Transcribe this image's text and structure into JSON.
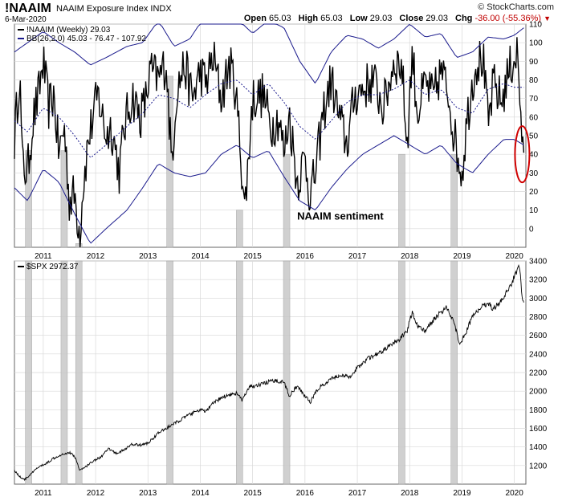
{
  "header": {
    "symbol": "!NAAIM",
    "index_name": "NAAIM Exposure Index",
    "exchange": "INDX",
    "date": "6-Mar-2020",
    "brand": "© StockCharts.com",
    "open_label": "Open",
    "open": "65.03",
    "high_label": "High",
    "high": "65.03",
    "low_label": "Low",
    "low": "29.03",
    "close_label": "Close",
    "close": "29.03",
    "chg_label": "Chg",
    "chg": "-36.00 (-55.36%)"
  },
  "colors": {
    "price": "#000000",
    "bands": "#1a1a8c",
    "highlight": "#c8c8c8",
    "circle": "#d00000",
    "grid": "#d8d8d8"
  },
  "chart_data": [
    {
      "type": "line",
      "title": "NAAIM Exposure Index",
      "annotation": "NAAIM sentiment",
      "legend": [
        {
          "name": "!NAAIM (Weekly) 29.03"
        },
        {
          "name": "BB(26,2.0) 45.03 - 76.47 - 107.92"
        }
      ],
      "ylim": [
        -10,
        110
      ],
      "yticks": [
        0,
        10,
        20,
        30,
        40,
        50,
        60,
        70,
        80,
        90,
        100,
        110
      ],
      "xlim": [
        2010.45,
        2020.22
      ],
      "xticks": [
        "2011",
        "2012",
        "2013",
        "2014",
        "2015",
        "2016",
        "2017",
        "2018",
        "2019",
        "2020"
      ],
      "series": [
        {
          "name": "NAAIM",
          "x": [
            2010.45,
            2010.55,
            2010.6,
            2010.7,
            2010.8,
            2010.9,
            2011.0,
            2011.1,
            2011.2,
            2011.3,
            2011.4,
            2011.45,
            2011.5,
            2011.6,
            2011.7,
            2011.75,
            2011.85,
            2011.95,
            2012.05,
            2012.2,
            2012.3,
            2012.4,
            2012.45,
            2012.55,
            2012.7,
            2012.85,
            2012.95,
            2013.05,
            2013.2,
            2013.35,
            2013.45,
            2013.55,
            2013.7,
            2013.85,
            2014.0,
            2014.1,
            2014.25,
            2014.4,
            2014.55,
            2014.65,
            2014.75,
            2014.85,
            2015.0,
            2015.2,
            2015.35,
            2015.5,
            2015.6,
            2015.7,
            2015.85,
            2016.0,
            2016.1,
            2016.2,
            2016.35,
            2016.5,
            2016.65,
            2016.8,
            2016.95,
            2017.1,
            2017.3,
            2017.5,
            2017.7,
            2017.85,
            2017.95,
            2018.05,
            2018.15,
            2018.3,
            2018.45,
            2018.6,
            2018.75,
            2018.85,
            2018.93,
            2019.0,
            2019.1,
            2019.25,
            2019.4,
            2019.5,
            2019.6,
            2019.75,
            2019.9,
            2020.0,
            2020.05,
            2020.12,
            2020.18
          ],
          "y": [
            48,
            85,
            35,
            30,
            58,
            70,
            90,
            65,
            72,
            40,
            55,
            35,
            15,
            18,
            -3,
            20,
            45,
            60,
            72,
            50,
            55,
            40,
            30,
            55,
            72,
            60,
            68,
            85,
            80,
            90,
            35,
            75,
            88,
            70,
            85,
            78,
            92,
            70,
            88,
            80,
            50,
            10,
            70,
            72,
            55,
            60,
            40,
            62,
            25,
            38,
            18,
            30,
            62,
            80,
            60,
            45,
            72,
            75,
            80,
            65,
            90,
            88,
            45,
            95,
            62,
            78,
            70,
            85,
            72,
            50,
            38,
            30,
            60,
            88,
            92,
            55,
            78,
            68,
            85,
            92,
            95,
            65,
            29
          ]
        },
        {
          "name": "BB upper",
          "x": [
            2010.45,
            2010.7,
            2011.0,
            2011.3,
            2011.6,
            2011.9,
            2012.2,
            2012.6,
            2012.9,
            2013.2,
            2013.5,
            2013.8,
            2014.1,
            2014.4,
            2014.7,
            2015.0,
            2015.3,
            2015.6,
            2015.9,
            2016.2,
            2016.5,
            2016.8,
            2017.1,
            2017.4,
            2017.7,
            2018.0,
            2018.3,
            2018.6,
            2018.9,
            2019.2,
            2019.5,
            2019.8,
            2020.0,
            2020.18
          ],
          "y": [
            95,
            100,
            106,
            100,
            95,
            88,
            92,
            98,
            100,
            112,
            98,
            102,
            115,
            112,
            113,
            105,
            112,
            108,
            90,
            78,
            95,
            104,
            102,
            97,
            102,
            110,
            103,
            105,
            92,
            95,
            103,
            102,
            104,
            108
          ]
        },
        {
          "name": "BB middle",
          "x": [
            2010.45,
            2010.7,
            2011.0,
            2011.3,
            2011.6,
            2011.9,
            2012.2,
            2012.6,
            2012.9,
            2013.2,
            2013.5,
            2013.8,
            2014.1,
            2014.4,
            2014.7,
            2015.0,
            2015.3,
            2015.6,
            2015.9,
            2016.2,
            2016.5,
            2016.8,
            2017.1,
            2017.4,
            2017.7,
            2018.0,
            2018.3,
            2018.6,
            2018.9,
            2019.2,
            2019.5,
            2019.8,
            2020.0,
            2020.18
          ],
          "y": [
            58,
            52,
            65,
            60,
            50,
            38,
            45,
            55,
            62,
            72,
            70,
            65,
            72,
            78,
            80,
            72,
            78,
            68,
            55,
            48,
            58,
            68,
            72,
            72,
            75,
            80,
            72,
            75,
            65,
            62,
            75,
            78,
            76,
            76
          ]
        },
        {
          "name": "BB lower",
          "x": [
            2010.45,
            2010.7,
            2011.0,
            2011.3,
            2011.6,
            2011.9,
            2012.2,
            2012.6,
            2012.9,
            2013.2,
            2013.5,
            2013.8,
            2014.1,
            2014.4,
            2014.7,
            2015.0,
            2015.3,
            2015.6,
            2015.9,
            2016.2,
            2016.5,
            2016.8,
            2017.1,
            2017.4,
            2017.7,
            2018.0,
            2018.3,
            2018.6,
            2018.9,
            2019.2,
            2019.5,
            2019.8,
            2020.0,
            2020.18
          ],
          "y": [
            22,
            15,
            32,
            25,
            8,
            -8,
            0,
            10,
            22,
            35,
            30,
            28,
            30,
            40,
            45,
            38,
            42,
            28,
            15,
            10,
            22,
            32,
            40,
            45,
            50,
            45,
            40,
            45,
            35,
            30,
            40,
            48,
            48,
            45
          ]
        }
      ],
      "highlights": [
        2010.72,
        2011.4,
        2011.68,
        2013.42,
        2014.75,
        2015.65,
        2017.85,
        2018.85
      ],
      "circle_at": {
        "x": 2020.15,
        "y": 40
      }
    },
    {
      "type": "line",
      "title": "$SPX",
      "legend": [
        {
          "name": "$SPX 2972.37"
        }
      ],
      "ylim": [
        1000,
        3400
      ],
      "yticks": [
        1200,
        1400,
        1600,
        1800,
        2000,
        2200,
        2400,
        2600,
        2800,
        3000,
        3200,
        3400
      ],
      "xlim": [
        2010.45,
        2020.22
      ],
      "xticks": [
        "2011",
        "2012",
        "2013",
        "2014",
        "2015",
        "2016",
        "2017",
        "2018",
        "2019",
        "2020"
      ],
      "series": [
        {
          "name": "SPX",
          "x": [
            2010.45,
            2010.55,
            2010.65,
            2010.75,
            2010.9,
            2011.05,
            2011.2,
            2011.35,
            2011.5,
            2011.6,
            2011.7,
            2011.8,
            2011.95,
            2012.1,
            2012.25,
            2012.4,
            2012.55,
            2012.7,
            2012.85,
            2013.0,
            2013.2,
            2013.35,
            2013.5,
            2013.65,
            2013.8,
            2014.0,
            2014.1,
            2014.25,
            2014.4,
            2014.55,
            2014.7,
            2014.8,
            2014.95,
            2015.1,
            2015.3,
            2015.45,
            2015.6,
            2015.7,
            2015.85,
            2016.0,
            2016.1,
            2016.25,
            2016.4,
            2016.55,
            2016.7,
            2016.85,
            2017.0,
            2017.2,
            2017.4,
            2017.6,
            2017.8,
            2017.95,
            2018.05,
            2018.15,
            2018.3,
            2018.5,
            2018.7,
            2018.85,
            2018.95,
            2019.05,
            2019.2,
            2019.35,
            2019.5,
            2019.6,
            2019.75,
            2019.9,
            2020.05,
            2020.1,
            2020.15,
            2020.18
          ],
          "y": [
            1150,
            1080,
            1050,
            1100,
            1180,
            1220,
            1280,
            1320,
            1340,
            1300,
            1150,
            1180,
            1250,
            1290,
            1380,
            1330,
            1370,
            1430,
            1420,
            1440,
            1550,
            1600,
            1650,
            1700,
            1750,
            1800,
            1780,
            1870,
            1930,
            1960,
            1980,
            1900,
            2050,
            2060,
            2100,
            2110,
            2100,
            1950,
            2050,
            1950,
            1880,
            2030,
            2080,
            2150,
            2170,
            2150,
            2250,
            2350,
            2400,
            2480,
            2550,
            2650,
            2850,
            2700,
            2650,
            2800,
            2900,
            2750,
            2500,
            2600,
            2800,
            2900,
            2950,
            2880,
            2980,
            3100,
            3300,
            3350,
            3000,
            2972
          ]
        }
      ],
      "highlights": [
        2010.72,
        2011.4,
        2011.68,
        2013.42,
        2014.75,
        2015.65,
        2017.85,
        2018.85
      ]
    }
  ]
}
